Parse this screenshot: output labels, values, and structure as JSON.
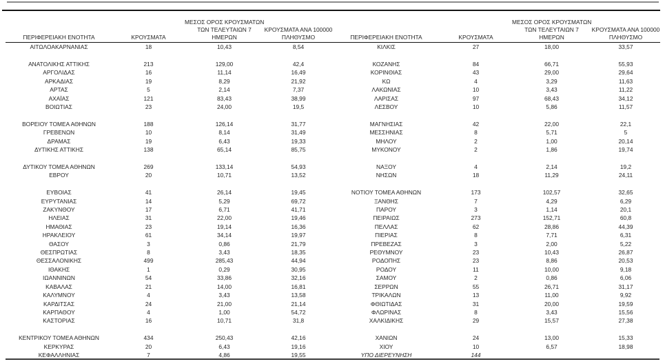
{
  "document": {
    "kind": "regional-cases-table",
    "language": "el"
  },
  "colors": {
    "text": "#262626",
    "rule_top_gray": "#8a8a8a",
    "rule_top_black": "#141414",
    "header_underline": "#111111",
    "rule_bottom": "#3c3c3c",
    "background": "#ffffff"
  },
  "table": {
    "headers": {
      "region": "ΠΕΡΙΦΕΡΕΙΑΚΗ ΕΝΟΤΗΤΑ",
      "cases": "ΚΡΟΥΣΜΑΤΑ",
      "avg7_l1": "ΜΕΣΟΣ ΟΡΟΣ ΚΡΟΥΣΜΑΤΩΝ",
      "avg7_l2": "ΤΩΝ ΤΕΛΕΥΤΑΙΩΝ 7",
      "avg7_l3": "ΗΜΕΡΩΝ",
      "per100k_l1": "ΚΡΟΥΣΜΑΤΑ ΑΝΑ 100000",
      "per100k_l2": "ΠΛΗΘΥΣΜΟ"
    },
    "left_rows": [
      [
        "ΑΙΤΩΛΟΑΚΑΡΝΑΝΙΑΣ",
        "18",
        "10,43",
        "8,54"
      ],
      null,
      [
        "ΑΝΑΤΟΛΙΚΗΣ ΑΤΤΙΚΗΣ",
        "213",
        "129,00",
        "42,4"
      ],
      [
        "ΑΡΓΟΛΙΔΑΣ",
        "16",
        "11,14",
        "16,49"
      ],
      [
        "ΑΡΚΑΔΙΑΣ",
        "19",
        "8,29",
        "21,92"
      ],
      [
        "ΑΡΤΑΣ",
        "5",
        "2,14",
        "7,37"
      ],
      [
        "ΑΧΑΪΑΣ",
        "121",
        "83,43",
        "38,99"
      ],
      [
        "ΒΟΙΩΤΙΑΣ",
        "23",
        "24,00",
        "19,5"
      ],
      null,
      [
        "ΒΟΡΕΙΟΥ ΤΟΜΕΑ ΑΘΗΝΩΝ",
        "188",
        "126,14",
        "31,77"
      ],
      [
        "ΓΡΕΒΕΝΩΝ",
        "10",
        "8,14",
        "31,49"
      ],
      [
        "ΔΡΑΜΑΣ",
        "19",
        "6,43",
        "19,33"
      ],
      [
        "ΔΥΤΙΚΗΣ ΑΤΤΙΚΗΣ",
        "138",
        "65,14",
        "85,75"
      ],
      null,
      [
        "ΔΥΤΙΚΟΥ ΤΟΜΕΑ ΑΘΗΝΩΝ",
        "269",
        "133,14",
        "54,93"
      ],
      [
        "ΕΒΡΟΥ",
        "20",
        "10,71",
        "13,52"
      ],
      null,
      [
        "ΕΥΒΟΙΑΣ",
        "41",
        "26,14",
        "19,45"
      ],
      [
        "ΕΥΡΥΤΑΝΙΑΣ",
        "14",
        "5,29",
        "69,72"
      ],
      [
        "ΖΑΚΥΝΘΟΥ",
        "17",
        "6,71",
        "41,71"
      ],
      [
        "ΗΛΕΙΑΣ",
        "31",
        "22,00",
        "19,46"
      ],
      [
        "ΗΜΑΘΙΑΣ",
        "23",
        "19,14",
        "16,36"
      ],
      [
        "ΗΡΑΚΛΕΙΟΥ",
        "61",
        "34,14",
        "19,97"
      ],
      [
        "ΘΑΣΟΥ",
        "3",
        "0,86",
        "21,79"
      ],
      [
        "ΘΕΣΠΡΩΤΙΑΣ",
        "8",
        "3,43",
        "18,35"
      ],
      [
        "ΘΕΣΣΑΛΟΝΙΚΗΣ",
        "499",
        "285,43",
        "44,94"
      ],
      [
        "ΙΘΑΚΗΣ",
        "1",
        "0,29",
        "30,95"
      ],
      [
        "ΙΩΑΝΝΙΝΩΝ",
        "54",
        "33,86",
        "32,16"
      ],
      [
        "ΚΑΒΑΛΑΣ",
        "21",
        "14,00",
        "16,81"
      ],
      [
        "ΚΑΛΥΜΝΟΥ",
        "4",
        "3,43",
        "13,58"
      ],
      [
        "ΚΑΡΔΙΤΣΑΣ",
        "24",
        "21,00",
        "21,14"
      ],
      [
        "ΚΑΡΠΑΘΟΥ",
        "4",
        "1,00",
        "54,72"
      ],
      [
        "ΚΑΣΤΟΡΙΑΣ",
        "16",
        "10,71",
        "31,8"
      ],
      null,
      [
        "ΚΕΝΤΡΙΚΟΥ ΤΟΜΕΑ ΑΘΗΝΩΝ",
        "434",
        "250,43",
        "42,16"
      ],
      [
        "ΚΕΡΚΥΡΑΣ",
        "20",
        "6,43",
        "19,16"
      ],
      [
        "ΚΕΦΑΛΛΗΝΙΑΣ",
        "7",
        "4,86",
        "19,55"
      ]
    ],
    "right_rows": [
      [
        "ΚΙΛΚΙΣ",
        "27",
        "18,00",
        "33,57"
      ],
      null,
      [
        "ΚΟΖΑΝΗΣ",
        "84",
        "66,71",
        "55,93"
      ],
      [
        "ΚΟΡΙΝΘΙΑΣ",
        "43",
        "29,00",
        "29,64"
      ],
      [
        "ΚΩ",
        "4",
        "3,29",
        "11,63"
      ],
      [
        "ΛΑΚΩΝΙΑΣ",
        "10",
        "3,43",
        "11,22"
      ],
      [
        "ΛΑΡΙΣΑΣ",
        "97",
        "68,43",
        "34,12"
      ],
      [
        "ΛΕΣΒΟΥ",
        "10",
        "5,86",
        "11,57"
      ],
      null,
      [
        "ΜΑΓΝΗΣΙΑΣ",
        "42",
        "22,00",
        "22,1"
      ],
      [
        "ΜΕΣΣΗΝΙΑΣ",
        "8",
        "5,71",
        "5"
      ],
      [
        "ΜΗΛΟΥ",
        "2",
        "1,00",
        "20,14"
      ],
      [
        "ΜΥΚΟΝΟΥ",
        "2",
        "1,86",
        "19,74"
      ],
      null,
      [
        "ΝΑΞΟΥ",
        "4",
        "2,14",
        "19,2"
      ],
      [
        "ΝΗΣΩΝ",
        "18",
        "11,29",
        "24,11"
      ],
      null,
      [
        "ΝΟΤΙΟΥ ΤΟΜΕΑ ΑΘΗΝΩΝ",
        "173",
        "102,57",
        "32,65"
      ],
      [
        "ΞΑΝΘΗΣ",
        "7",
        "4,29",
        "6,29"
      ],
      [
        "ΠΑΡΟΥ",
        "3",
        "1,14",
        "20,1"
      ],
      [
        "ΠΕΙΡΑΙΩΣ",
        "273",
        "152,71",
        "60,8"
      ],
      [
        "ΠΕΛΛΑΣ",
        "62",
        "28,86",
        "44,39"
      ],
      [
        "ΠΙΕΡΙΑΣ",
        "8",
        "7,71",
        "6,31"
      ],
      [
        "ΠΡΕΒΕΖΑΣ",
        "3",
        "2,00",
        "5,22"
      ],
      [
        "ΡΕΘΥΜΝΟΥ",
        "23",
        "10,43",
        "26,87"
      ],
      [
        "ΡΟΔΟΠΗΣ",
        "23",
        "8,86",
        "20,53"
      ],
      [
        "ΡΟΔΟΥ",
        "11",
        "10,00",
        "9,18"
      ],
      [
        "ΣΑΜΟΥ",
        "2",
        "0,86",
        "6,06"
      ],
      [
        "ΣΕΡΡΩΝ",
        "55",
        "26,71",
        "31,17"
      ],
      [
        "ΤΡΙΚΑΛΩΝ",
        "13",
        "11,00",
        "9,92"
      ],
      [
        "ΦΘΙΩΤΙΔΑΣ",
        "31",
        "20,00",
        "19,59"
      ],
      [
        "ΦΛΩΡΙΝΑΣ",
        "8",
        "3,43",
        "15,56"
      ],
      [
        "ΧΑΛΚΙΔΙΚΗΣ",
        "29",
        "15,57",
        "27,38"
      ],
      null,
      [
        "ΧΑΝΙΩΝ",
        "24",
        "13,00",
        "15,33"
      ],
      [
        "ΧΙΟΥ",
        "10",
        "6,57",
        "18,98"
      ],
      [
        "ΥΠΟ ΔΙΕΡΕΥΝΗΣΗ",
        "144",
        "",
        "",
        "italic"
      ]
    ]
  }
}
